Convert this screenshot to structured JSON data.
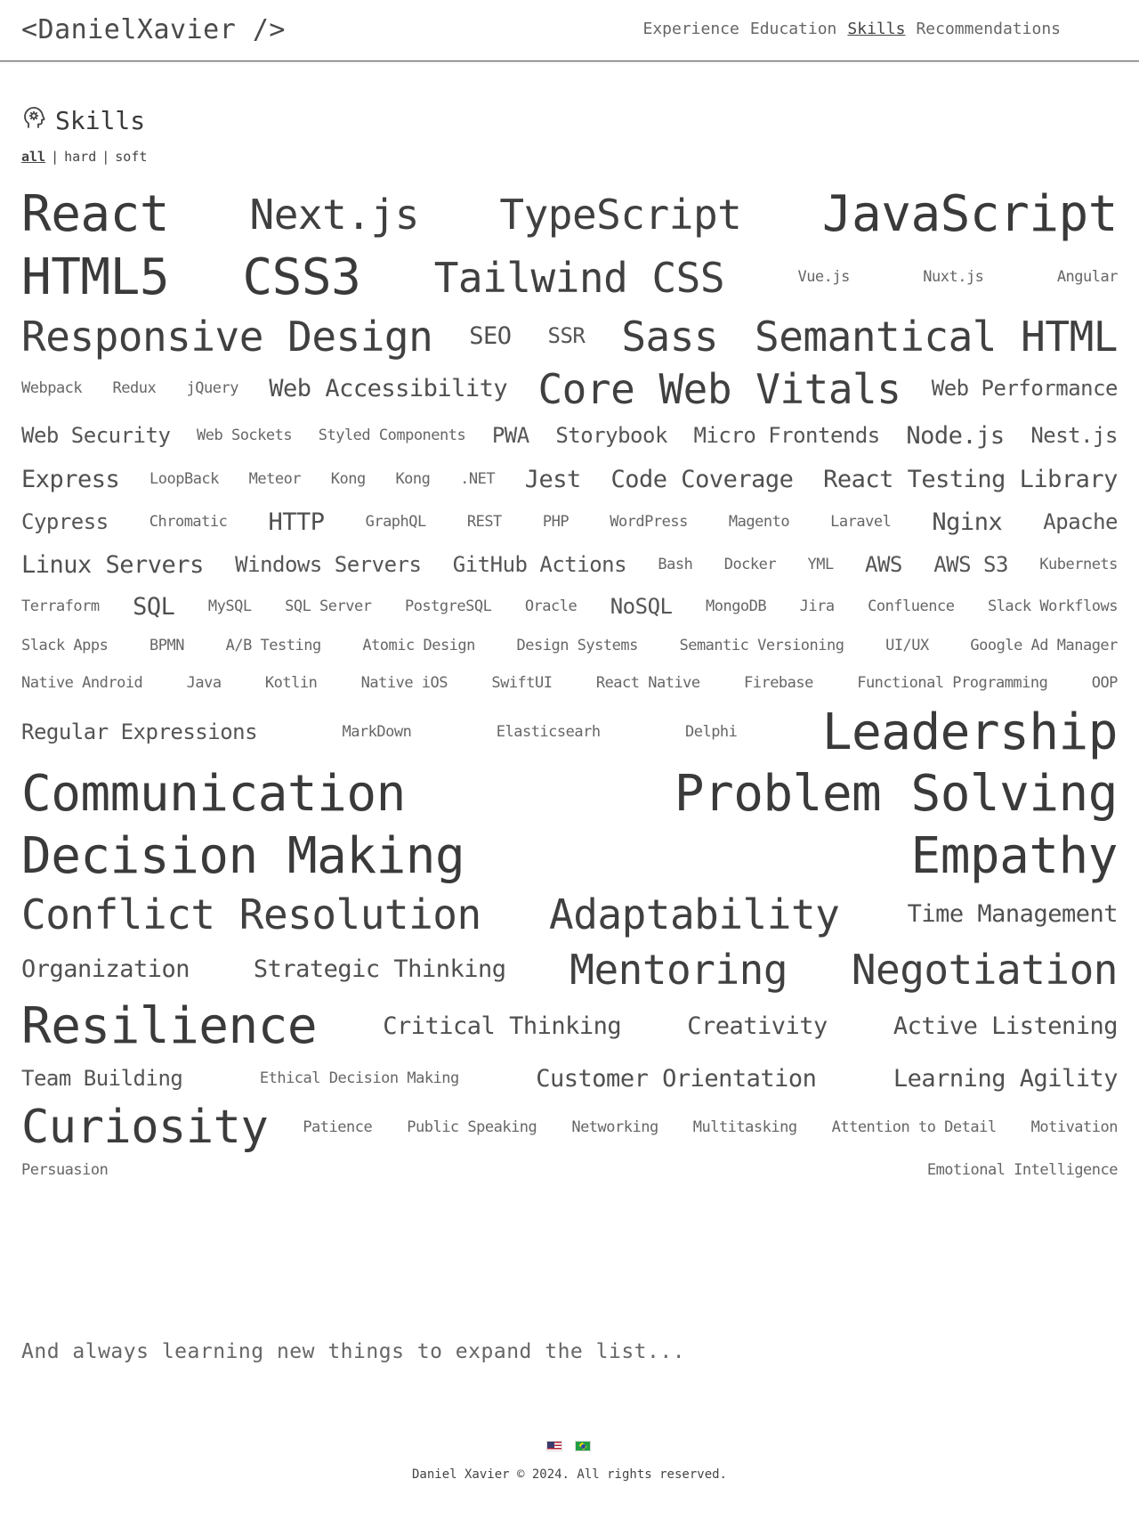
{
  "header": {
    "logo": "<DanielXavier />",
    "nav": [
      "Experience",
      "Education",
      "Skills",
      "Recommendations"
    ],
    "active_nav": "Skills"
  },
  "section": {
    "title": "Skills",
    "icon": "head-gear-icon",
    "filters": [
      "all",
      "hard",
      "soft"
    ],
    "active_filter": "all"
  },
  "skills": {
    "rows": [
      [
        [
          "React",
          10
        ],
        [
          "Next.js",
          8
        ],
        [
          "TypeScript",
          8
        ],
        [
          "JavaScript",
          10
        ]
      ],
      [
        [
          "HTML5",
          10
        ],
        [
          "CSS3",
          10
        ],
        [
          "Tailwind CSS",
          8
        ],
        [
          "Vue.js",
          2
        ],
        [
          "Nuxt.js",
          2
        ],
        [
          "Angular",
          2
        ]
      ],
      [
        [
          "Responsive Design",
          8
        ],
        [
          "SEO",
          5
        ],
        [
          "SSR",
          4
        ],
        [
          "Sass",
          8
        ],
        [
          "Semantical HTML",
          8
        ]
      ],
      [
        [
          "Webpack",
          2
        ],
        [
          "Redux",
          2
        ],
        [
          "jQuery",
          2
        ],
        [
          "Web Accessibility",
          5
        ],
        [
          "Core Web Vitals",
          8
        ],
        [
          "Web Performance",
          4
        ]
      ],
      [
        [
          "Web Security",
          4
        ],
        [
          "Web Sockets",
          2
        ],
        [
          "Styled Components",
          2
        ],
        [
          "PWA",
          4
        ],
        [
          "Storybook",
          4
        ],
        [
          "Micro Frontends",
          4
        ],
        [
          "Node.js",
          5
        ],
        [
          "Nest.js",
          4
        ]
      ],
      [
        [
          "Express",
          5
        ],
        [
          "LoopBack",
          2
        ],
        [
          "Meteor",
          2
        ],
        [
          "Kong",
          2
        ],
        [
          "Kong",
          2
        ],
        [
          ".NET",
          2
        ],
        [
          "Jest",
          5
        ],
        [
          "Code Coverage",
          5
        ],
        [
          "React Testing Library",
          5
        ]
      ],
      [
        [
          "Cypress",
          4
        ],
        [
          "Chromatic",
          2
        ],
        [
          "HTTP",
          5
        ],
        [
          "GraphQL",
          2
        ],
        [
          "REST",
          2
        ],
        [
          "PHP",
          2
        ],
        [
          "WordPress",
          2
        ],
        [
          "Magento",
          2
        ],
        [
          "Laravel",
          2
        ],
        [
          "Nginx",
          5
        ],
        [
          "Apache",
          4
        ]
      ],
      [
        [
          "Linux Servers",
          5
        ],
        [
          "Windows Servers",
          4
        ],
        [
          "GitHub Actions",
          4
        ],
        [
          "Bash",
          2
        ],
        [
          "Docker",
          2
        ],
        [
          "YML",
          2
        ],
        [
          "AWS",
          4
        ],
        [
          "AWS S3",
          4
        ],
        [
          "Kubernets",
          2
        ]
      ],
      [
        [
          "Terraform",
          2
        ],
        [
          "SQL",
          5
        ],
        [
          "MySQL",
          2
        ],
        [
          "SQL Server",
          2
        ],
        [
          "PostgreSQL",
          2
        ],
        [
          "Oracle",
          2
        ],
        [
          "NoSQL",
          4
        ],
        [
          "MongoDB",
          2
        ],
        [
          "Jira",
          2
        ],
        [
          "Confluence",
          2
        ],
        [
          "Slack Workflows",
          2
        ]
      ],
      [
        [
          "Slack Apps",
          2
        ],
        [
          "BPMN",
          2
        ],
        [
          "A/B Testing",
          2
        ],
        [
          "Atomic Design",
          2
        ],
        [
          "Design Systems",
          2
        ],
        [
          "Semantic Versioning",
          2
        ],
        [
          "UI/UX",
          2
        ],
        [
          "Google Ad Manager",
          2
        ]
      ],
      [
        [
          "Native Android",
          2
        ],
        [
          "Java",
          2
        ],
        [
          "Kotlin",
          2
        ],
        [
          "Native iOS",
          2
        ],
        [
          "SwiftUI",
          2
        ],
        [
          "React Native",
          2
        ],
        [
          "Firebase",
          2
        ],
        [
          "Functional Programming",
          2
        ],
        [
          "OOP",
          2
        ]
      ],
      [
        [
          "Regular Expressions",
          4
        ],
        [
          "MarkDown",
          2
        ],
        [
          "Elasticsearh",
          2
        ],
        [
          "Delphi",
          2
        ],
        [
          "Leadership",
          10
        ]
      ],
      [
        [
          "Communication",
          10
        ],
        [
          "Problem Solving",
          10
        ]
      ],
      [
        [
          "Decision Making",
          10
        ],
        [
          "Empathy",
          10
        ]
      ],
      [
        [
          "Conflict Resolution",
          8
        ],
        [
          "Adaptability",
          8
        ],
        [
          "Time Management",
          5
        ]
      ],
      [
        [
          "Organization",
          5
        ],
        [
          "Strategic Thinking",
          5
        ],
        [
          "Mentoring",
          8
        ],
        [
          "Negotiation",
          8
        ]
      ],
      [
        [
          "Resilience",
          10
        ],
        [
          "Critical Thinking",
          5
        ],
        [
          "Creativity",
          5
        ],
        [
          "Active Listening",
          5
        ]
      ],
      [
        [
          "Team Building",
          4
        ],
        [
          "Ethical Decision Making",
          2
        ],
        [
          "Customer Orientation",
          5
        ],
        [
          "Learning Agility",
          5
        ]
      ],
      [
        [
          "Curiosity",
          9
        ],
        [
          "Patience",
          2
        ],
        [
          "Public Speaking",
          2
        ],
        [
          "Networking",
          2
        ],
        [
          "Multitasking",
          2
        ],
        [
          "Attention to Detail",
          2
        ],
        [
          "Motivation",
          2
        ]
      ],
      [
        [
          "Persuasion",
          2
        ],
        [
          "Emotional Intelligence",
          2
        ]
      ]
    ]
  },
  "footer": {
    "note": "And always learning new things to expand the list...",
    "languages": [
      "flag-us-icon",
      "flag-br-icon"
    ],
    "copyright": "Daniel Xavier © 2024. All rights reserved."
  }
}
